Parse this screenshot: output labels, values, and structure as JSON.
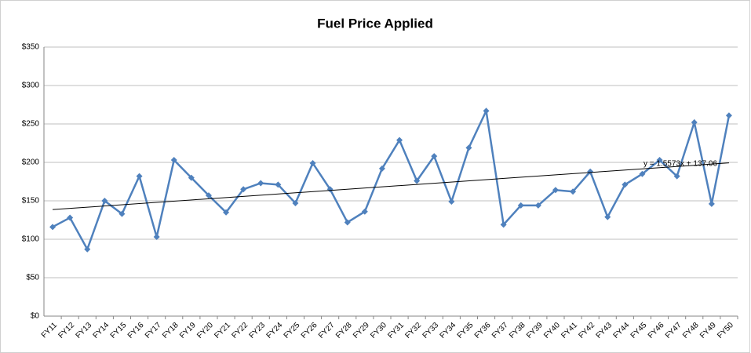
{
  "chart_data": {
    "type": "line",
    "title": "Fuel Price Applied",
    "categories": [
      "FY11",
      "FY12",
      "FY13",
      "FY14",
      "FY15",
      "FY16",
      "FY17",
      "FY18",
      "FY19",
      "FY20",
      "FY21",
      "FY22",
      "FY23",
      "FY24",
      "FY25",
      "FY26",
      "FY27",
      "FY28",
      "FY29",
      "FY30",
      "FY31",
      "FY32",
      "FY33",
      "FY34",
      "FY35",
      "FY36",
      "FY37",
      "FY38",
      "FY39",
      "FY40",
      "FY41",
      "FY42",
      "FY43",
      "FY44",
      "FY45",
      "FY46",
      "FY47",
      "FY48",
      "FY49",
      "FY50"
    ],
    "series": [
      {
        "name": "Fuel Price Applied",
        "color": "#4f81bd",
        "values": [
          116,
          128,
          87,
          150,
          133,
          182,
          103,
          203,
          180,
          157,
          135,
          165,
          173,
          171,
          147,
          199,
          165,
          122,
          136,
          192,
          229,
          176,
          208,
          149,
          219,
          267,
          119,
          144,
          144,
          164,
          162,
          188,
          129,
          171,
          185,
          203,
          182,
          252,
          146,
          261
        ]
      }
    ],
    "trendline": {
      "slope": 1.5573,
      "intercept": 137.06,
      "label": "y = 1.5573x + 137.06",
      "color": "#000000"
    },
    "ylim": [
      0,
      350
    ],
    "yticks": [
      {
        "value": 0,
        "label": "$0"
      },
      {
        "value": 50,
        "label": "$50"
      },
      {
        "value": 100,
        "label": "$100"
      },
      {
        "value": 150,
        "label": "$150"
      },
      {
        "value": 200,
        "label": "$200"
      },
      {
        "value": 250,
        "label": "$250"
      },
      {
        "value": 300,
        "label": "$300"
      },
      {
        "value": 350,
        "label": "$350"
      }
    ],
    "grid": true
  }
}
